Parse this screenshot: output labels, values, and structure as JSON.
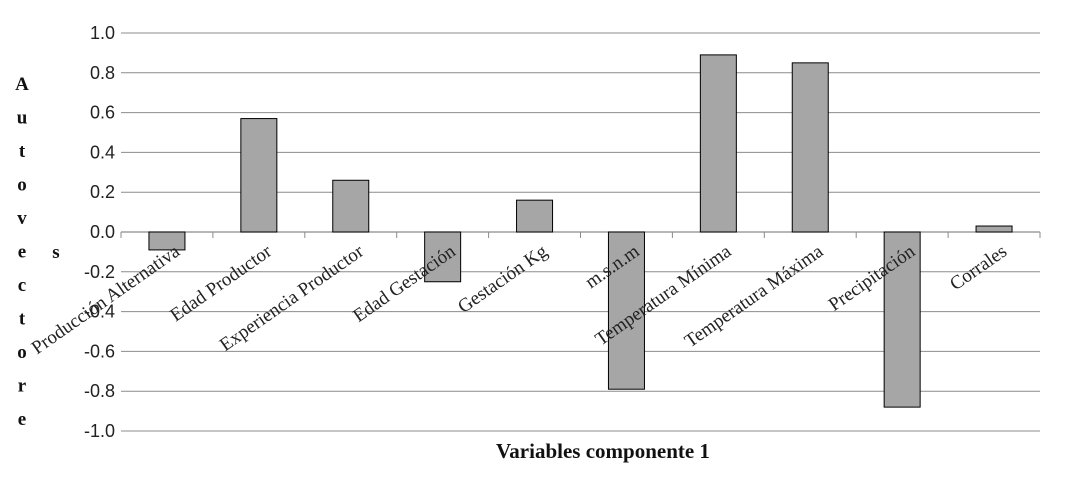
{
  "chart_data": {
    "type": "bar",
    "categories": [
      "Producción Alternativa",
      "Edad Productor",
      "Experiencia Productor",
      "Edad Gestación",
      "Gestación Kg",
      "m.s.n.m",
      "Temperatura Mínima",
      "Temperatura Máxima",
      "Precipitación",
      "Corrales"
    ],
    "values": [
      -0.09,
      0.57,
      0.26,
      -0.25,
      0.16,
      -0.79,
      0.89,
      0.85,
      -0.88,
      0.03
    ],
    "xlabel": "Variables componente 1",
    "ylabel": "Autovectores",
    "ylim": [
      -1.0,
      1.0
    ],
    "yticks": [
      "1.0",
      "0.8",
      "0.6",
      "0.4",
      "0.2",
      "0.0",
      "-0.2",
      "-0.4",
      "-0.6",
      "-0.8",
      "-1.0"
    ],
    "grid": true,
    "legend": "none",
    "colors": {
      "bar_fill": "#a6a6a6",
      "bar_stroke": "#000000",
      "grid": "#8c8c8c",
      "text": "#222222"
    }
  }
}
